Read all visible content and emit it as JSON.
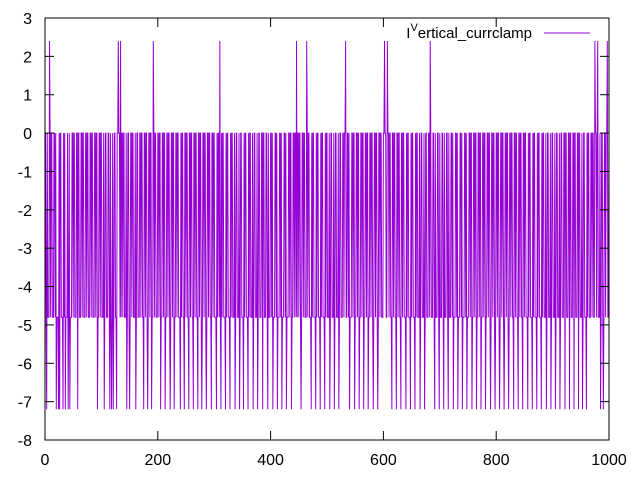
{
  "chart_data": {
    "type": "line",
    "title": "",
    "xlabel": "",
    "ylabel": "",
    "xlim": [
      0,
      1000
    ],
    "ylim": [
      -8,
      3
    ],
    "x_ticks": [
      0,
      200,
      400,
      600,
      800,
      1000
    ],
    "y_ticks": [
      3,
      2,
      1,
      0,
      -1,
      -2,
      -3,
      -4,
      -5,
      -6,
      -7,
      -8
    ],
    "grid": false,
    "legend_position": "top-right",
    "colors": {
      "series": "#9400d3",
      "axis": "#000000",
      "background": "#ffffff"
    },
    "series": [
      {
        "name": "I",
        "name_superscript": "V",
        "name_suffix": "ertical_currclamp",
        "levels": [
          2.4,
          0,
          -4.8,
          -7.2
        ],
        "spike_x": [
          8,
          130,
          134,
          192,
          310,
          446,
          464,
          533,
          602,
          607,
          683,
          975,
          980,
          997
        ],
        "deep_x": [
          3,
          20,
          24,
          26,
          32,
          36,
          41,
          44,
          58,
          93,
          105,
          115,
          118,
          121,
          127,
          145,
          150,
          161,
          175,
          182,
          189,
          205,
          213,
          222,
          229,
          240,
          247,
          255,
          263,
          271,
          278,
          286,
          295,
          304,
          312,
          320,
          328,
          337,
          345,
          352,
          360,
          369,
          377,
          386,
          395,
          404,
          412,
          420,
          428,
          437,
          454,
          472,
          480,
          488,
          496,
          505,
          513,
          521,
          540,
          549,
          557,
          565,
          573,
          582,
          590,
          615,
          623,
          631,
          640,
          648,
          656,
          665,
          673,
          691,
          699,
          707,
          715,
          724,
          732,
          740,
          748,
          757,
          765,
          773,
          781,
          790,
          798,
          806,
          814,
          822,
          831,
          839,
          847,
          856,
          864,
          872,
          880,
          889,
          897,
          905,
          913,
          922,
          930,
          938,
          946,
          953,
          960,
          985,
          990
        ],
        "step": 4
      }
    ]
  }
}
